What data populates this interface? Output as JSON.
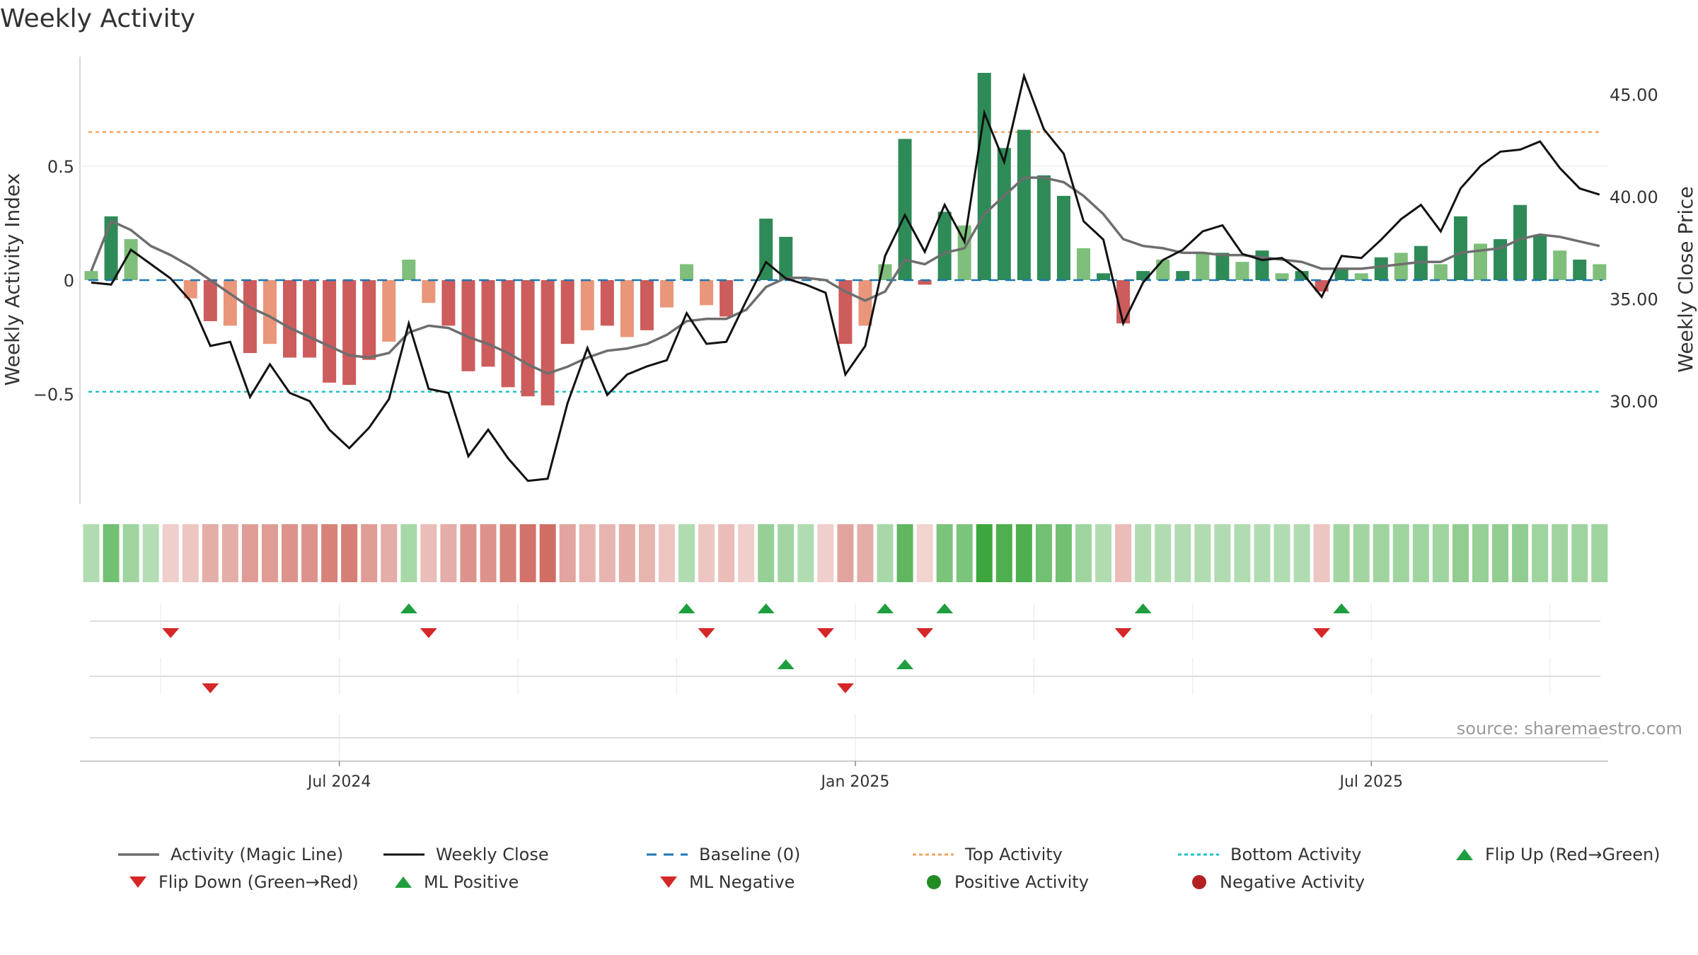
{
  "title": "Weekly Activity",
  "source": "source: sharemaestro.com",
  "colors": {
    "strong_green": "#2e8b57",
    "light_green": "#7fbf7b",
    "strong_red": "#cd5c5c",
    "light_red": "#e9967a",
    "magic_line": "#6e6e6e",
    "close_line": "#111111",
    "baseline": "#1f77b4",
    "top_line": "#f4a460",
    "bottom_line": "#20c0c8",
    "marker_up": "#1e9e3e",
    "marker_down": "#d62728",
    "positive_dot": "#228b22",
    "negative_dot": "#b22222"
  },
  "chart_data": {
    "type": "bar",
    "ylabel_left": "Weekly Activity Index",
    "ylabel_right": "Weekly Close Price",
    "yticks_left": [
      "0.5",
      "0",
      "−0.5"
    ],
    "yticks_right": [
      "45.00",
      "40.00",
      "35.00",
      "30.00"
    ],
    "ylim_left": [
      -0.98,
      0.98
    ],
    "ylim_right": [
      25.3,
      48.0
    ],
    "x_ticks": [
      "Jul 2024",
      "Jan 2025",
      "Jul 2025"
    ],
    "top_activity": 0.65,
    "bottom_activity": -0.49,
    "baseline": 0,
    "start_date": "2024-03-31",
    "tick_weeks": [
      12.5,
      38.5,
      64.5
    ],
    "activity": [
      0.04,
      0.28,
      0.18,
      0,
      0,
      -0.08,
      -0.18,
      -0.2,
      -0.32,
      -0.28,
      -0.34,
      -0.34,
      -0.45,
      -0.46,
      -0.35,
      -0.27,
      0.09,
      -0.1,
      -0.2,
      -0.4,
      -0.38,
      -0.47,
      -0.51,
      -0.55,
      -0.28,
      -0.22,
      -0.2,
      -0.25,
      -0.22,
      -0.12,
      0.07,
      -0.11,
      -0.16,
      0,
      0.27,
      0.19,
      0,
      0,
      -0.28,
      -0.2,
      0.07,
      0.62,
      -0.02,
      0.3,
      0.24,
      0.91,
      0.58,
      0.66,
      0.46,
      0.37,
      0.14,
      0.03,
      -0.19,
      0.04,
      0.09,
      0.04,
      0.12,
      0.12,
      0.08,
      0.13,
      0.03,
      0.04,
      -0.05,
      0.05,
      0.03,
      0.1,
      0.12,
      0.15,
      0.07,
      0.28,
      0.16,
      0.18,
      0.33,
      0.2,
      0.13,
      0.09,
      0.07
    ],
    "magic_line": [
      0.04,
      0.26,
      0.22,
      0.15,
      0.11,
      0.06,
      0,
      -0.06,
      -0.12,
      -0.16,
      -0.21,
      -0.25,
      -0.29,
      -0.33,
      -0.34,
      -0.32,
      -0.23,
      -0.2,
      -0.21,
      -0.25,
      -0.28,
      -0.32,
      -0.37,
      -0.41,
      -0.38,
      -0.34,
      -0.31,
      -0.3,
      -0.28,
      -0.24,
      -0.18,
      -0.17,
      -0.17,
      -0.13,
      -0.03,
      0.01,
      0.01,
      0,
      -0.05,
      -0.09,
      -0.05,
      0.09,
      0.07,
      0.12,
      0.14,
      0.29,
      0.37,
      0.45,
      0.45,
      0.43,
      0.37,
      0.29,
      0.18,
      0.15,
      0.14,
      0.12,
      0.12,
      0.11,
      0.11,
      0.1,
      0.09,
      0.08,
      0.05,
      0.05,
      0.05,
      0.06,
      0.07,
      0.08,
      0.08,
      0.12,
      0.13,
      0.14,
      0.18,
      0.2,
      0.19,
      0.17,
      0.15
    ],
    "weekly_close": [
      35.8,
      35.7,
      37.4,
      36.7,
      36,
      34.9,
      32.7,
      32.9,
      30.2,
      31.8,
      30.4,
      30,
      28.6,
      27.7,
      28.7,
      30.1,
      33.8,
      30.6,
      30.4,
      27.3,
      28.6,
      27.2,
      26.1,
      26.2,
      29.9,
      32.6,
      30.3,
      31.3,
      31.7,
      32,
      34.3,
      32.8,
      32.9,
      34.9,
      36.8,
      36,
      35.7,
      35.3,
      31.3,
      32.7,
      37.1,
      39.1,
      37.3,
      39.6,
      37.8,
      44.1,
      41.7,
      45.9,
      43.3,
      42.1,
      38.8,
      37.9,
      33.8,
      35.8,
      36.9,
      37.4,
      38.3,
      38.6,
      37.2,
      36.9,
      37,
      36.3,
      35.1,
      37.1,
      37,
      37.9,
      38.9,
      39.6,
      38.3,
      40.4,
      41.5,
      42.2,
      42.3,
      42.7,
      41.4,
      40.4,
      40.1
    ],
    "heat_strip": [
      0.2,
      0.55,
      0.3,
      0.18,
      -0.15,
      -0.2,
      -0.35,
      -0.35,
      -0.45,
      -0.45,
      -0.5,
      -0.5,
      -0.6,
      -0.62,
      -0.45,
      -0.35,
      0.25,
      -0.25,
      -0.35,
      -0.5,
      -0.5,
      -0.6,
      -0.7,
      -0.72,
      -0.4,
      -0.3,
      -0.3,
      -0.35,
      -0.3,
      -0.2,
      0.2,
      -0.2,
      -0.25,
      -0.15,
      0.35,
      0.28,
      0.2,
      -0.15,
      -0.4,
      -0.35,
      0.25,
      0.65,
      -0.12,
      0.5,
      0.5,
      0.85,
      0.75,
      0.75,
      0.55,
      0.55,
      0.3,
      0.2,
      -0.25,
      0.2,
      0.2,
      0.2,
      0.2,
      0.2,
      0.2,
      0.2,
      0.2,
      0.2,
      -0.2,
      0.28,
      0.28,
      0.3,
      0.3,
      0.3,
      0.3,
      0.38,
      0.35,
      0.38,
      0.38,
      0.3,
      0.3,
      0.3,
      0.3
    ],
    "flip_up_weeks": [
      16,
      30,
      34,
      40,
      43,
      53,
      63
    ],
    "flip_down_weeks": [
      4,
      17,
      31,
      37,
      42,
      52,
      62
    ],
    "ml_positive_weeks": [
      35,
      41
    ],
    "ml_negative_weeks": [
      6,
      38
    ]
  },
  "legend": [
    {
      "label": "Activity (Magic Line)",
      "icon": "solid-gray-line"
    },
    {
      "label": "Weekly Close",
      "icon": "solid-black-line"
    },
    {
      "label": "Baseline (0)",
      "icon": "dashed-blue-line"
    },
    {
      "label": "Top Activity",
      "icon": "dotted-orange-line"
    },
    {
      "label": "Bottom Activity",
      "icon": "dotted-cyan-line"
    },
    {
      "label": "Flip Up (Red→Green)",
      "icon": "green-triangle-up"
    },
    {
      "label": "Flip Down (Green→Red)",
      "icon": "red-triangle-down"
    },
    {
      "label": "ML Positive",
      "icon": "green-triangle-up"
    },
    {
      "label": "ML Negative",
      "icon": "red-triangle-down"
    },
    {
      "label": "Positive Activity",
      "icon": "green-dot"
    },
    {
      "label": "Negative Activity",
      "icon": "red-dot"
    }
  ]
}
